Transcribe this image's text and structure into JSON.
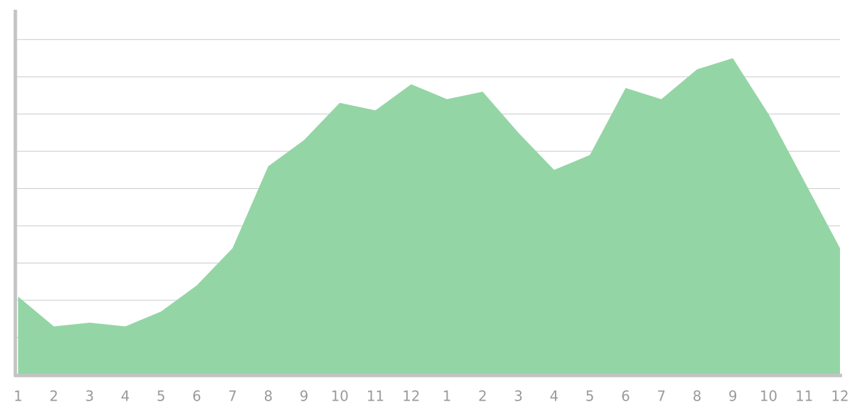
{
  "chart_data": {
    "type": "area",
    "categories": [
      "1",
      "2",
      "3",
      "4",
      "5",
      "6",
      "7",
      "8",
      "9",
      "10",
      "11",
      "12",
      "1",
      "2",
      "3",
      "4",
      "5",
      "6",
      "7",
      "8",
      "9",
      "10",
      "11",
      "12"
    ],
    "values": [
      2.1,
      1.3,
      1.4,
      1.3,
      1.7,
      2.4,
      3.4,
      5.6,
      6.3,
      7.3,
      7.1,
      7.8,
      7.4,
      7.6,
      6.5,
      5.5,
      5.9,
      7.7,
      7.4,
      8.2,
      8.5,
      7.0,
      5.2,
      3.4
    ],
    "color": "#94d5a5",
    "ylim": [
      0,
      9.8
    ],
    "yticks": [
      1,
      2,
      3,
      4,
      5,
      6,
      7,
      8,
      9
    ],
    "grid": true
  }
}
